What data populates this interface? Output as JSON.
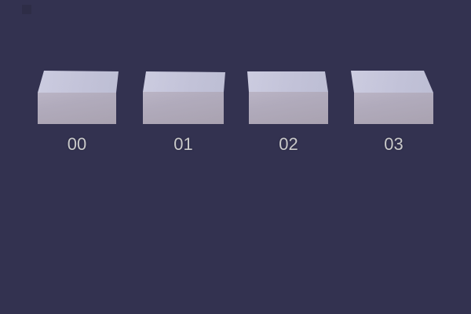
{
  "scene": {
    "background_color": "#333250",
    "boxes": [
      {
        "label": "00"
      },
      {
        "label": "01"
      },
      {
        "label": "02"
      },
      {
        "label": "03"
      }
    ],
    "colors": {
      "box_top_face": "#c5c5da",
      "box_front_face_top": "#b8b2c3",
      "box_front_face_bottom": "#a9a2b0",
      "label_text": "#c9c9c9"
    }
  }
}
